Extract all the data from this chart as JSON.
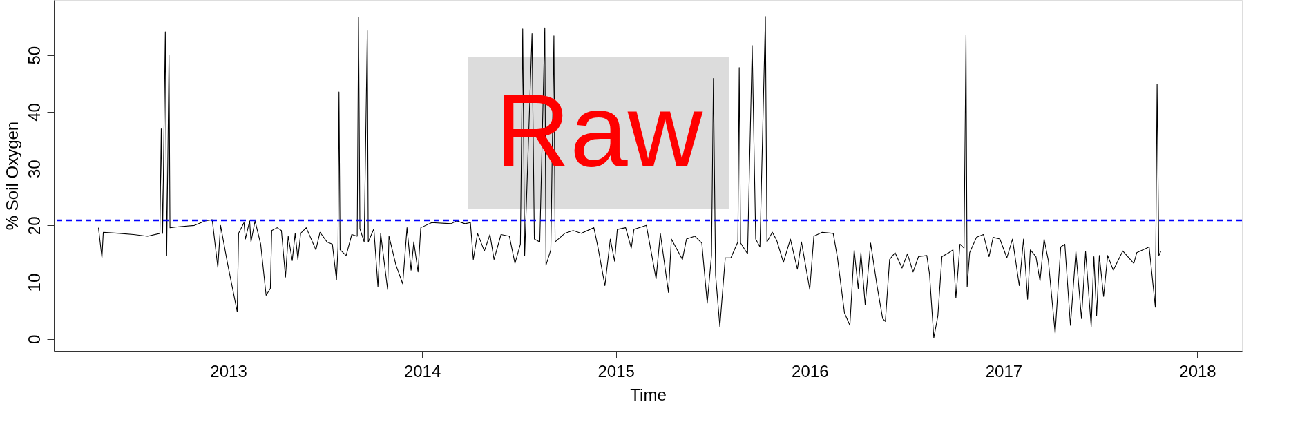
{
  "chart_data": {
    "type": "line",
    "xlabel": "Time",
    "ylabel": "% Soil Oxygen",
    "xlim": [
      2012.1,
      2018.23
    ],
    "xticks": [
      2013,
      2014,
      2015,
      2016,
      2017,
      2018
    ],
    "ylim": [
      -2.1,
      59.7
    ],
    "yticks": [
      0,
      10,
      20,
      30,
      40,
      50
    ],
    "ref_lines": [
      {
        "axis": "y",
        "value": 20.9,
        "color": "#0000ff",
        "line_style": "dashed"
      }
    ],
    "annotations": [
      "Raw"
    ],
    "series": [
      {
        "color": "#000000",
        "x": [
          2012.33,
          2012.348,
          2012.355,
          2012.44,
          2012.511,
          2012.583,
          2012.647,
          2012.654,
          2012.661,
          2012.675,
          2012.682,
          2012.694,
          2012.699,
          2012.754,
          2012.825,
          2012.882,
          2012.917,
          2012.946,
          2012.96,
          2012.996,
          2013.046,
          2013.053,
          2013.081,
          2013.088,
          2013.11,
          2013.117,
          2013.138,
          2013.167,
          2013.195,
          2013.217,
          2013.224,
          2013.252,
          2013.274,
          2013.295,
          2013.309,
          2013.33,
          2013.345,
          2013.359,
          2013.373,
          2013.402,
          2013.452,
          2013.473,
          2013.509,
          2013.537,
          2013.558,
          2013.566,
          2013.571,
          2013.577,
          2013.608,
          2013.637,
          2013.665,
          2013.672,
          2013.679,
          2013.701,
          2013.717,
          2013.722,
          2013.751,
          2013.772,
          2013.786,
          2013.822,
          2013.829,
          2013.865,
          2013.9,
          2013.922,
          2013.943,
          2013.957,
          2013.979,
          2013.993,
          2014.05,
          2014.15,
          2014.178,
          2014.221,
          2014.249,
          2014.264,
          2014.286,
          2014.321,
          2014.35,
          2014.371,
          2014.407,
          2014.45,
          2014.479,
          2014.507,
          2014.519,
          2014.529,
          2014.567,
          2014.579,
          2014.607,
          2014.633,
          2014.639,
          2014.664,
          2014.68,
          2014.686,
          2014.736,
          2014.779,
          2014.821,
          2014.886,
          2014.907,
          2014.943,
          2014.971,
          2014.993,
          2015.007,
          2015.05,
          2015.079,
          2015.093,
          2015.157,
          2015.207,
          2015.229,
          2015.271,
          2015.286,
          2015.343,
          2015.364,
          2015.407,
          2015.443,
          2015.471,
          2015.493,
          2015.503,
          2015.514,
          2015.536,
          2015.564,
          2015.593,
          2015.629,
          2015.636,
          2015.643,
          2015.679,
          2015.703,
          2015.721,
          2015.743,
          2015.771,
          2015.779,
          2015.807,
          2015.829,
          2015.864,
          2015.9,
          2015.936,
          2015.957,
          2016.0,
          2016.021,
          2016.064,
          2016.121,
          2016.143,
          2016.179,
          2016.207,
          2016.229,
          2016.25,
          2016.264,
          2016.286,
          2016.314,
          2016.348,
          2016.376,
          2016.39,
          2016.412,
          2016.44,
          2016.476,
          2016.504,
          2016.533,
          2016.561,
          2016.604,
          2016.618,
          2016.64,
          2016.661,
          2016.682,
          2016.718,
          2016.739,
          2016.754,
          2016.775,
          2016.796,
          2016.806,
          2016.812,
          2016.825,
          2016.86,
          2016.896,
          2016.925,
          2016.946,
          2016.981,
          2017.017,
          2017.046,
          2017.081,
          2017.103,
          2017.124,
          2017.138,
          2017.167,
          2017.188,
          2017.209,
          2017.231,
          2017.266,
          2017.295,
          2017.316,
          2017.345,
          2017.373,
          2017.402,
          2017.423,
          2017.452,
          2017.466,
          2017.48,
          2017.494,
          2017.516,
          2017.537,
          2017.566,
          2017.615,
          2017.672,
          2017.687,
          2017.751,
          2017.783,
          2017.792,
          2017.801,
          2017.812
        ],
        "values": [
          19.6,
          14.3,
          18.8,
          18.6,
          18.4,
          18.1,
          18.6,
          37.0,
          18.6,
          54.1,
          14.7,
          50.0,
          19.6,
          19.8,
          20.0,
          20.8,
          21.0,
          12.6,
          20.0,
          13.3,
          4.8,
          18.6,
          20.5,
          17.6,
          20.8,
          17.1,
          20.8,
          16.7,
          7.7,
          8.9,
          19.1,
          19.6,
          19.1,
          10.9,
          18.1,
          13.8,
          18.6,
          14.0,
          18.6,
          19.6,
          15.7,
          18.8,
          17.1,
          16.7,
          10.4,
          16.2,
          43.5,
          15.7,
          14.7,
          18.4,
          18.1,
          56.7,
          19.4,
          17.1,
          54.3,
          17.1,
          19.4,
          9.2,
          18.6,
          8.7,
          18.1,
          13.0,
          9.7,
          19.6,
          12.1,
          17.1,
          11.8,
          19.6,
          20.5,
          20.3,
          20.8,
          20.3,
          20.5,
          14.0,
          18.6,
          15.5,
          18.4,
          14.0,
          18.4,
          18.1,
          13.3,
          16.7,
          54.6,
          14.7,
          53.8,
          17.6,
          17.1,
          54.8,
          13.0,
          15.7,
          53.4,
          17.1,
          18.6,
          19.1,
          18.6,
          19.6,
          16.2,
          9.4,
          17.6,
          13.7,
          19.3,
          19.6,
          16.0,
          19.3,
          20.0,
          10.6,
          18.6,
          8.2,
          17.6,
          14.0,
          17.6,
          18.1,
          16.9,
          6.3,
          14.7,
          45.9,
          11.3,
          2.2,
          14.3,
          14.3,
          17.1,
          47.8,
          16.9,
          15.0,
          51.7,
          17.6,
          16.2,
          56.8,
          17.1,
          18.8,
          17.4,
          13.5,
          17.6,
          12.3,
          17.1,
          8.7,
          18.1,
          18.8,
          18.6,
          14.3,
          4.6,
          2.4,
          15.7,
          8.9,
          15.2,
          6.0,
          16.9,
          9.2,
          3.6,
          3.1,
          14.0,
          15.2,
          12.5,
          15.0,
          11.8,
          14.5,
          14.7,
          11.4,
          0.2,
          4.1,
          14.5,
          15.2,
          15.7,
          7.2,
          16.7,
          16.0,
          53.5,
          9.2,
          15.2,
          17.9,
          18.4,
          14.5,
          17.9,
          17.6,
          14.3,
          17.6,
          9.4,
          17.6,
          7.0,
          15.7,
          14.5,
          10.2,
          17.6,
          13.8,
          1.0,
          16.2,
          16.7,
          2.4,
          15.4,
          3.6,
          15.4,
          2.2,
          14.5,
          4.1,
          14.7,
          7.5,
          14.7,
          12.1,
          15.5,
          13.3,
          15.2,
          16.2,
          5.6,
          44.9,
          14.7,
          15.5
        ]
      }
    ]
  }
}
